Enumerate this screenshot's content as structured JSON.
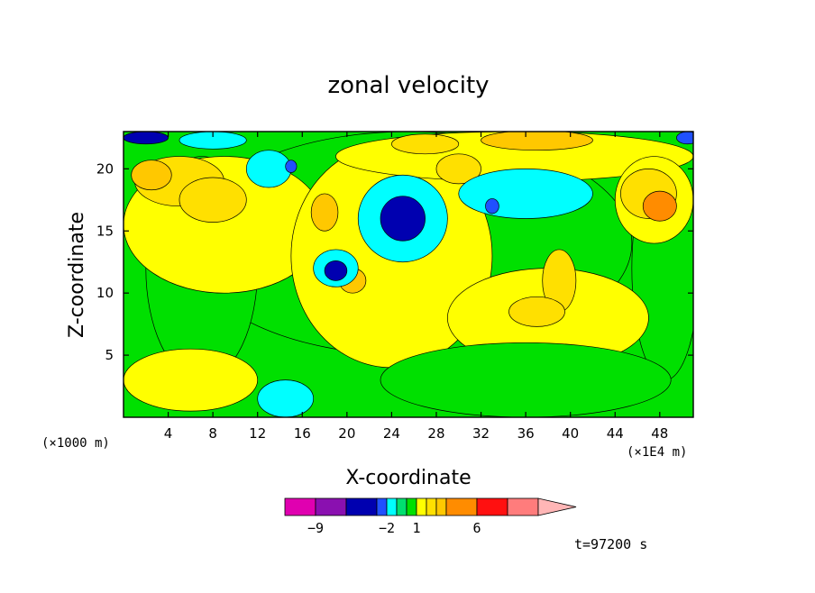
{
  "chart_data": {
    "type": "heatmap",
    "title": "zonal velocity",
    "xlabel": "X-coordinate",
    "ylabel": "Z-coordinate",
    "x_unit": "(×1E4 m)",
    "y_unit": "(×1000 m)",
    "xlim": [
      0,
      51
    ],
    "ylim": [
      0,
      23
    ],
    "x_ticks": [
      4,
      8,
      12,
      16,
      20,
      24,
      28,
      32,
      36,
      40,
      44,
      48
    ],
    "y_ticks": [
      5,
      10,
      15,
      20
    ],
    "time_label": "t=97200 s",
    "colorbar": {
      "tick_labels": [
        {
          "label": "−9",
          "value": -9
        },
        {
          "label": "−2",
          "value": -2
        },
        {
          "label": "1",
          "value": 1
        },
        {
          "label": "6",
          "value": 6
        }
      ],
      "bins": [
        {
          "lo": -12,
          "hi": -9,
          "color": "#e000b0"
        },
        {
          "lo": -9,
          "hi": -6,
          "color": "#8a10b0"
        },
        {
          "lo": -6,
          "hi": -3,
          "color": "#0000b0"
        },
        {
          "lo": -3,
          "hi": -2,
          "color": "#2050ff"
        },
        {
          "lo": -2,
          "hi": -1,
          "color": "#00ffff"
        },
        {
          "lo": -1,
          "hi": 0,
          "color": "#00e070"
        },
        {
          "lo": 0,
          "hi": 1,
          "color": "#00e000"
        },
        {
          "lo": 1,
          "hi": 2,
          "color": "#ffff00"
        },
        {
          "lo": 2,
          "hi": 3,
          "color": "#ffe000"
        },
        {
          "lo": 3,
          "hi": 4,
          "color": "#ffc800"
        },
        {
          "lo": 4,
          "hi": 6,
          "color": "#ff8c00"
        },
        {
          "lo": 6,
          "hi": 9,
          "color": "#ff1010"
        },
        {
          "lo": 9,
          "hi": 12,
          "color": "#ff7c7c"
        },
        {
          "lo": 12,
          "hi": 15,
          "color": "#ffb6b6"
        }
      ]
    },
    "field_features": [
      {
        "value": 0.5,
        "cx": 25.5,
        "cy": 14,
        "rx": 20,
        "ry": 9
      },
      {
        "value": 0.5,
        "cx": 7,
        "cy": 12,
        "rx": 5,
        "ry": 9
      },
      {
        "value": 0.5,
        "cx": 48.5,
        "cy": 12,
        "rx": 3,
        "ry": 9
      },
      {
        "value": 1.5,
        "cx": 6,
        "cy": 3,
        "rx": 6,
        "ry": 2.5
      },
      {
        "value": 1.5,
        "cx": 9,
        "cy": 15.5,
        "rx": 9,
        "ry": 5.5
      },
      {
        "value": 1.5,
        "cx": 24,
        "cy": 13,
        "rx": 9,
        "ry": 9
      },
      {
        "value": 1.5,
        "cx": 38,
        "cy": 8,
        "rx": 9,
        "ry": 4
      },
      {
        "value": 1.5,
        "cx": 35,
        "cy": 21,
        "rx": 16,
        "ry": 2
      },
      {
        "value": 1.5,
        "cx": 47.5,
        "cy": 17.5,
        "rx": 3.5,
        "ry": 3.5
      },
      {
        "value": 0.5,
        "cx": 36,
        "cy": 3,
        "rx": 13,
        "ry": 3
      },
      {
        "value": 2.5,
        "cx": 5,
        "cy": 19,
        "rx": 4,
        "ry": 2
      },
      {
        "value": 2.5,
        "cx": 8,
        "cy": 17.5,
        "rx": 3,
        "ry": 1.8
      },
      {
        "value": 3.5,
        "cx": 2.5,
        "cy": 19.5,
        "rx": 1.8,
        "ry": 1.2
      },
      {
        "value": 2.5,
        "cx": 39,
        "cy": 11,
        "rx": 1.5,
        "ry": 2.5
      },
      {
        "value": 2.5,
        "cx": 37,
        "cy": 8.5,
        "rx": 2.5,
        "ry": 1.2
      },
      {
        "value": 2.5,
        "cx": 47,
        "cy": 18,
        "rx": 2.5,
        "ry": 2
      },
      {
        "value": 4.5,
        "cx": 48,
        "cy": 17,
        "rx": 1.5,
        "ry": 1.2
      },
      {
        "value": 3.5,
        "cx": 37,
        "cy": 22.3,
        "rx": 5,
        "ry": 0.8
      },
      {
        "value": 2.5,
        "cx": 30,
        "cy": 20,
        "rx": 2,
        "ry": 1.2
      },
      {
        "value": 2.5,
        "cx": 27,
        "cy": 22,
        "rx": 3,
        "ry": 0.8
      },
      {
        "value": 3.5,
        "cx": 18,
        "cy": 16.5,
        "rx": 1.2,
        "ry": 1.5
      },
      {
        "value": 3.5,
        "cx": 20.5,
        "cy": 11,
        "rx": 1.2,
        "ry": 1
      },
      {
        "value": -1.5,
        "cx": 36,
        "cy": 18,
        "rx": 6,
        "ry": 2
      },
      {
        "value": -1.5,
        "cx": 13,
        "cy": 20,
        "rx": 2,
        "ry": 1.5
      },
      {
        "value": -1.5,
        "cx": 14.5,
        "cy": 1.5,
        "rx": 2.5,
        "ry": 1.5
      },
      {
        "value": -1.5,
        "cx": 25,
        "cy": 16,
        "rx": 4,
        "ry": 3.5
      },
      {
        "value": -1.5,
        "cx": 8,
        "cy": 22.3,
        "rx": 3,
        "ry": 0.7
      },
      {
        "value": -1.5,
        "cx": 19,
        "cy": 12,
        "rx": 2,
        "ry": 1.5
      },
      {
        "value": -4.5,
        "cx": 25,
        "cy": 16,
        "rx": 2,
        "ry": 1.8
      },
      {
        "value": -4.5,
        "cx": 19,
        "cy": 11.8,
        "rx": 1,
        "ry": 0.8
      },
      {
        "value": -4.5,
        "cx": 2,
        "cy": 22.5,
        "rx": 2,
        "ry": 0.5
      },
      {
        "value": -2.5,
        "cx": 33,
        "cy": 17,
        "rx": 0.6,
        "ry": 0.6
      },
      {
        "value": -2.5,
        "cx": 15,
        "cy": 20.2,
        "rx": 0.5,
        "ry": 0.5
      },
      {
        "value": -2.5,
        "cx": 50.5,
        "cy": 22.5,
        "rx": 1,
        "ry": 0.5
      }
    ]
  }
}
